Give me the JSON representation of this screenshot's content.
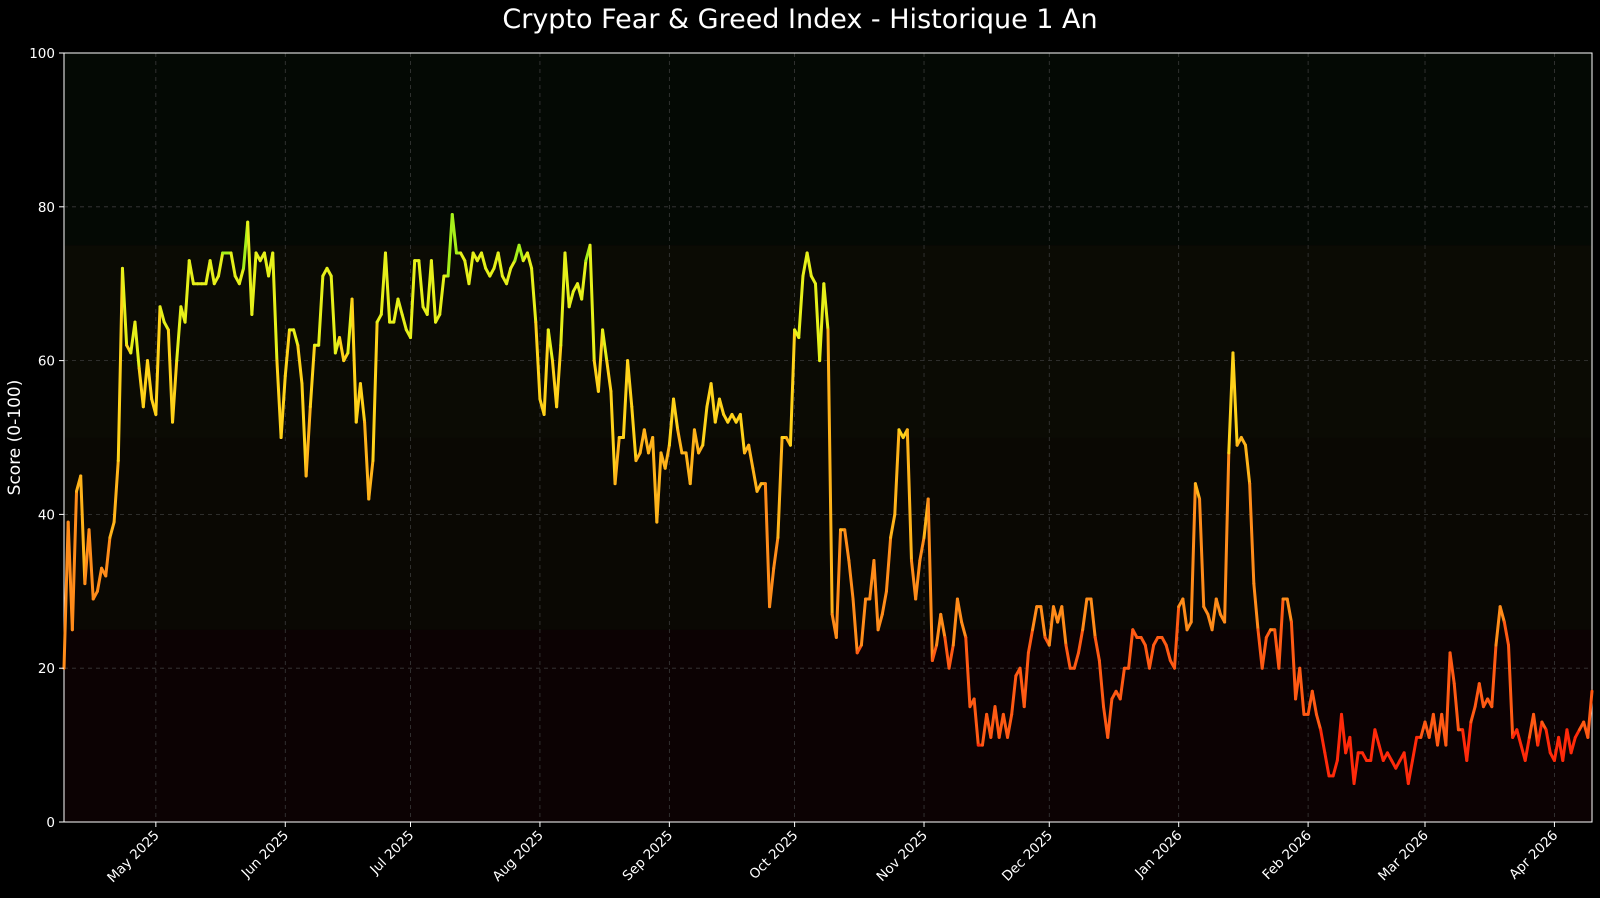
{
  "chart_data": {
    "type": "line",
    "title": "Crypto Fear & Greed Index - Historique 1 An",
    "ylabel": "Score (0-100)",
    "xlabel": "",
    "ylim": [
      0,
      100
    ],
    "xlim": [
      "2025-04-09",
      "2026-04-10"
    ],
    "grid": true,
    "legend": "none",
    "yticks": [
      0,
      20,
      40,
      60,
      80,
      100
    ],
    "xticks": [
      {
        "date": "2025-05-01",
        "label": "May 2025"
      },
      {
        "date": "2025-06-01",
        "label": "Jun 2025"
      },
      {
        "date": "2025-07-01",
        "label": "Jul 2025"
      },
      {
        "date": "2025-08-01",
        "label": "Aug 2025"
      },
      {
        "date": "2025-09-01",
        "label": "Sep 2025"
      },
      {
        "date": "2025-10-01",
        "label": "Oct 2025"
      },
      {
        "date": "2025-11-01",
        "label": "Nov 2025"
      },
      {
        "date": "2025-12-01",
        "label": "Dec 2025"
      },
      {
        "date": "2026-01-01",
        "label": "Jan 2026"
      },
      {
        "date": "2026-02-01",
        "label": "Feb 2026"
      },
      {
        "date": "2026-03-01",
        "label": "Mar 2026"
      },
      {
        "date": "2026-04-01",
        "label": "Apr 2026"
      }
    ],
    "zones": [
      {
        "from": 0,
        "to": 25,
        "color": "#0c0203"
      },
      {
        "from": 25,
        "to": 50,
        "color": "#0a0803"
      },
      {
        "from": 50,
        "to": 75,
        "color": "#0b0b04"
      },
      {
        "from": 75,
        "to": 100,
        "color": "#040904"
      }
    ],
    "colors": {
      "background": "#000000",
      "axes": "#ffffff",
      "grid": "#3a3a3a",
      "extreme_fear": "#ff2a0a",
      "fear": "#ff8c1a",
      "neutral": "#ffd21a",
      "greed": "#e6f01a",
      "extreme_greed": "#a6f01a"
    },
    "series": [
      {
        "x": [
          "2025-04-09",
          "2025-04-10",
          "2025-04-11",
          "2025-04-12",
          "2025-04-13",
          "2025-04-14",
          "2025-04-15",
          "2025-04-16",
          "2025-04-17",
          "2025-04-18",
          "2025-04-19",
          "2025-04-20",
          "2025-04-21",
          "2025-04-22",
          "2025-04-23",
          "2025-04-24",
          "2025-04-25",
          "2025-04-26",
          "2025-04-27",
          "2025-04-28",
          "2025-04-29",
          "2025-04-30",
          "2025-05-01",
          "2025-05-02",
          "2025-05-03",
          "2025-05-04",
          "2025-05-05",
          "2025-05-06",
          "2025-05-07",
          "2025-05-08",
          "2025-05-09",
          "2025-05-10",
          "2025-05-11",
          "2025-05-12",
          "2025-05-13",
          "2025-05-14",
          "2025-05-15",
          "2025-05-16",
          "2025-05-17",
          "2025-05-18",
          "2025-05-19",
          "2025-05-20",
          "2025-05-21",
          "2025-05-22",
          "2025-05-23",
          "2025-05-24",
          "2025-05-25",
          "2025-05-26",
          "2025-05-27",
          "2025-05-28",
          "2025-05-29",
          "2025-05-30",
          "2025-05-31",
          "2025-06-01",
          "2025-06-02",
          "2025-06-03",
          "2025-06-04",
          "2025-06-05",
          "2025-06-06",
          "2025-06-07",
          "2025-06-08",
          "2025-06-09",
          "2025-06-10",
          "2025-06-11",
          "2025-06-12",
          "2025-06-13",
          "2025-06-14",
          "2025-06-15",
          "2025-06-16",
          "2025-06-17",
          "2025-06-18",
          "2025-06-19",
          "2025-06-20",
          "2025-06-21",
          "2025-06-22",
          "2025-06-23",
          "2025-06-24",
          "2025-06-25",
          "2025-06-26",
          "2025-06-27",
          "2025-06-28",
          "2025-06-29",
          "2025-06-30",
          "2025-07-01",
          "2025-07-02",
          "2025-07-03",
          "2025-07-04",
          "2025-07-05",
          "2025-07-06",
          "2025-07-07",
          "2025-07-08",
          "2025-07-09",
          "2025-07-10",
          "2025-07-11",
          "2025-07-12",
          "2025-07-13",
          "2025-07-14",
          "2025-07-15",
          "2025-07-16",
          "2025-07-17",
          "2025-07-18",
          "2025-07-19",
          "2025-07-20",
          "2025-07-21",
          "2025-07-22",
          "2025-07-23",
          "2025-07-24",
          "2025-07-25",
          "2025-07-26",
          "2025-07-27",
          "2025-07-28",
          "2025-07-29",
          "2025-07-30",
          "2025-07-31",
          "2025-08-01",
          "2025-08-02",
          "2025-08-03",
          "2025-08-04",
          "2025-08-05",
          "2025-08-06",
          "2025-08-07",
          "2025-08-08",
          "2025-08-09",
          "2025-08-10",
          "2025-08-11",
          "2025-08-12",
          "2025-08-13",
          "2025-08-14",
          "2025-08-15",
          "2025-08-16",
          "2025-08-17",
          "2025-08-18",
          "2025-08-19",
          "2025-08-20",
          "2025-08-21",
          "2025-08-22",
          "2025-08-23",
          "2025-08-24",
          "2025-08-25",
          "2025-08-26",
          "2025-08-27",
          "2025-08-28",
          "2025-08-29",
          "2025-08-30",
          "2025-08-31",
          "2025-09-01",
          "2025-09-02",
          "2025-09-03",
          "2025-09-04",
          "2025-09-05",
          "2025-09-06",
          "2025-09-07",
          "2025-09-08",
          "2025-09-09",
          "2025-09-10",
          "2025-09-11",
          "2025-09-12",
          "2025-09-13",
          "2025-09-14",
          "2025-09-15",
          "2025-09-16",
          "2025-09-17",
          "2025-09-18",
          "2025-09-19",
          "2025-09-20",
          "2025-09-21",
          "2025-09-22",
          "2025-09-23",
          "2025-09-24",
          "2025-09-25",
          "2025-09-26",
          "2025-09-27",
          "2025-09-28",
          "2025-09-29",
          "2025-09-30",
          "2025-10-01",
          "2025-10-02",
          "2025-10-03",
          "2025-10-04",
          "2025-10-05",
          "2025-10-06",
          "2025-10-07",
          "2025-10-08",
          "2025-10-09",
          "2025-10-10",
          "2025-10-11",
          "2025-10-12",
          "2025-10-13",
          "2025-10-14",
          "2025-10-15",
          "2025-10-16",
          "2025-10-17",
          "2025-10-18",
          "2025-10-19",
          "2025-10-20",
          "2025-10-21",
          "2025-10-22",
          "2025-10-23",
          "2025-10-24",
          "2025-10-25",
          "2025-10-26",
          "2025-10-27",
          "2025-10-28",
          "2025-10-29",
          "2025-10-30",
          "2025-10-31",
          "2025-11-01",
          "2025-11-02",
          "2025-11-03",
          "2025-11-04",
          "2025-11-05",
          "2025-11-06",
          "2025-11-07",
          "2025-11-08",
          "2025-11-09",
          "2025-11-10",
          "2025-11-11",
          "2025-11-12",
          "2025-11-13",
          "2025-11-14",
          "2025-11-15",
          "2025-11-16",
          "2025-11-17",
          "2025-11-18",
          "2025-11-19",
          "2025-11-20",
          "2025-11-21",
          "2025-11-22",
          "2025-11-23",
          "2025-11-24",
          "2025-11-25",
          "2025-11-26",
          "2025-11-27",
          "2025-11-28",
          "2025-11-29",
          "2025-11-30",
          "2025-12-01",
          "2025-12-02",
          "2025-12-03",
          "2025-12-04",
          "2025-12-05",
          "2025-12-06",
          "2025-12-07",
          "2025-12-08",
          "2025-12-09",
          "2025-12-10",
          "2025-12-11",
          "2025-12-12",
          "2025-12-13",
          "2025-12-14",
          "2025-12-15",
          "2025-12-16",
          "2025-12-17",
          "2025-12-18",
          "2025-12-19",
          "2025-12-20",
          "2025-12-21",
          "2025-12-22",
          "2025-12-23",
          "2025-12-24",
          "2025-12-25",
          "2025-12-26",
          "2025-12-27",
          "2025-12-28",
          "2025-12-29",
          "2025-12-30",
          "2025-12-31",
          "2026-01-01",
          "2026-01-02",
          "2026-01-03",
          "2026-01-04",
          "2026-01-05",
          "2026-01-06",
          "2026-01-07",
          "2026-01-08",
          "2026-01-09",
          "2026-01-10",
          "2026-01-11",
          "2026-01-12",
          "2026-01-13",
          "2026-01-14",
          "2026-01-15",
          "2026-01-16",
          "2026-01-17",
          "2026-01-18",
          "2026-01-19",
          "2026-01-20",
          "2026-01-21",
          "2026-01-22",
          "2026-01-23",
          "2026-01-24",
          "2026-01-25",
          "2026-01-26",
          "2026-01-27",
          "2026-01-28",
          "2026-01-29",
          "2026-01-30",
          "2026-01-31",
          "2026-02-01",
          "2026-02-02",
          "2026-02-03",
          "2026-02-04",
          "2026-02-05",
          "2026-02-06",
          "2026-02-07",
          "2026-02-08",
          "2026-02-09",
          "2026-02-10",
          "2026-02-11",
          "2026-02-12",
          "2026-02-13",
          "2026-02-14",
          "2026-02-15",
          "2026-02-16",
          "2026-02-17",
          "2026-02-18",
          "2026-02-19",
          "2026-02-20",
          "2026-02-21",
          "2026-02-22",
          "2026-02-23",
          "2026-02-24",
          "2026-02-25",
          "2026-02-26",
          "2026-02-27",
          "2026-02-28",
          "2026-03-01",
          "2026-03-02",
          "2026-03-03",
          "2026-03-04",
          "2026-03-05",
          "2026-03-06",
          "2026-03-07",
          "2026-03-08",
          "2026-03-09",
          "2026-03-10",
          "2026-03-11",
          "2026-03-12",
          "2026-03-13",
          "2026-03-14",
          "2026-03-15",
          "2026-03-16",
          "2026-03-17",
          "2026-03-18",
          "2026-03-19",
          "2026-03-20",
          "2026-03-21",
          "2026-03-22",
          "2026-03-23",
          "2026-03-24",
          "2026-03-25",
          "2026-03-26",
          "2026-03-27",
          "2026-03-28",
          "2026-03-29",
          "2026-03-30",
          "2026-03-31",
          "2026-04-01",
          "2026-04-02",
          "2026-04-03",
          "2026-04-04",
          "2026-04-05",
          "2026-04-06",
          "2026-04-07",
          "2026-04-08",
          "2026-04-09",
          "2026-04-10"
        ],
        "values": [
          20,
          39,
          25,
          43,
          45,
          31,
          38,
          29,
          30,
          33,
          32,
          37,
          39,
          47,
          72,
          62,
          61,
          65,
          59,
          54,
          60,
          55,
          53,
          67,
          65,
          64,
          52,
          60,
          67,
          65,
          73,
          70,
          70,
          70,
          70,
          73,
          70,
          71,
          74,
          74,
          74,
          71,
          70,
          72,
          78,
          66,
          74,
          73,
          74,
          71,
          74,
          60,
          50,
          58,
          64,
          64,
          62,
          57,
          45,
          54,
          62,
          62,
          71,
          72,
          71,
          61,
          63,
          60,
          61,
          68,
          52,
          57,
          52,
          42,
          47,
          65,
          66,
          74,
          65,
          65,
          68,
          66,
          64,
          63,
          73,
          73,
          67,
          66,
          73,
          65,
          66,
          71,
          71,
          79,
          74,
          74,
          73,
          70,
          74,
          73,
          74,
          72,
          71,
          72,
          74,
          71,
          70,
          72,
          73,
          75,
          73,
          74,
          72,
          65,
          55,
          53,
          64,
          60,
          54,
          62,
          74,
          67,
          69,
          70,
          68,
          73,
          75,
          60,
          56,
          64,
          60,
          56,
          44,
          50,
          50,
          60,
          54,
          47,
          48,
          51,
          48,
          50,
          39,
          48,
          46,
          49,
          55,
          51,
          48,
          48,
          44,
          51,
          48,
          49,
          54,
          57,
          52,
          55,
          53,
          52,
          53,
          52,
          53,
          48,
          49,
          46,
          43,
          44,
          44,
          28,
          33,
          37,
          50,
          50,
          49,
          64,
          63,
          71,
          74,
          71,
          70,
          60,
          70,
          64,
          27,
          24,
          38,
          38,
          34,
          29,
          22,
          23,
          29,
          29,
          34,
          25,
          27,
          30,
          37,
          40,
          51,
          50,
          51,
          34,
          29,
          34,
          37,
          42,
          21,
          23,
          27,
          24,
          20,
          23,
          29,
          26,
          24,
          15,
          16,
          10,
          10,
          14,
          11,
          15,
          11,
          14,
          11,
          14,
          19,
          20,
          15,
          22,
          25,
          28,
          28,
          24,
          23,
          28,
          26,
          28,
          23,
          20,
          20,
          22,
          25,
          29,
          29,
          24,
          21,
          15,
          11,
          16,
          17,
          16,
          20,
          20,
          25,
          24,
          24,
          23,
          20,
          23,
          24,
          24,
          23,
          21,
          20,
          28,
          29,
          25,
          26,
          44,
          42,
          28,
          27,
          25,
          29,
          27,
          26,
          48,
          61,
          49,
          50,
          49,
          44,
          31,
          25,
          20,
          24,
          25,
          25,
          20,
          29,
          29,
          26,
          16,
          20,
          14,
          14,
          17,
          14,
          12,
          9,
          6,
          6,
          8,
          14,
          9,
          11,
          5,
          9,
          9,
          8,
          8,
          12,
          10,
          8,
          9,
          8,
          7,
          8,
          9,
          5,
          8,
          11,
          11,
          13,
          11,
          14,
          10,
          14,
          10,
          22,
          18,
          12,
          12,
          8,
          13,
          15,
          18,
          15,
          16,
          15,
          23,
          28,
          26,
          23,
          11,
          12,
          10,
          8,
          11,
          14,
          10,
          13,
          12,
          9,
          8,
          11,
          8,
          12,
          9,
          11,
          12,
          13,
          11,
          17
        ]
      }
    ]
  }
}
